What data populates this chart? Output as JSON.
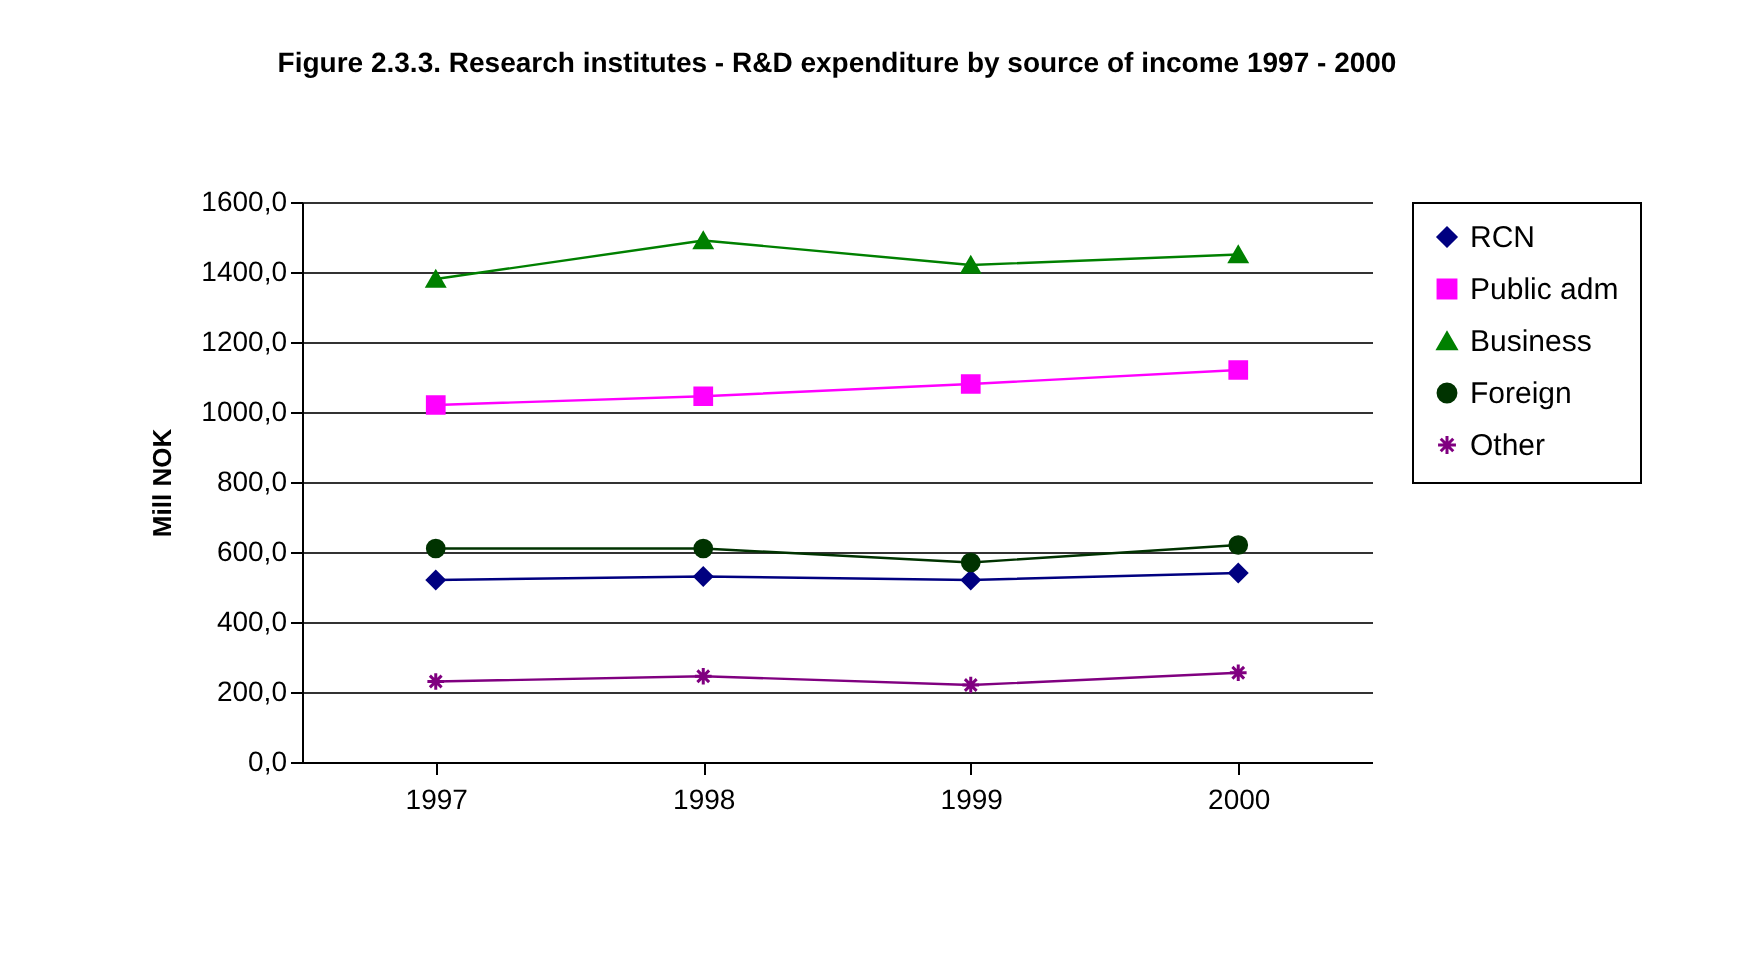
{
  "chart_data": {
    "type": "line",
    "title": "Figure 2.3.3. Research institutes - R&D expenditure by source of income 1997 - 2000",
    "ylabel": "Mill NOK",
    "categories": [
      "1997",
      "1998",
      "1999",
      "2000"
    ],
    "series": [
      {
        "name": "RCN",
        "color": "#000080",
        "marker": "diamond",
        "values": [
          520,
          530,
          520,
          540
        ]
      },
      {
        "name": "Public adm",
        "color": "#ff00ff",
        "marker": "square",
        "values": [
          1020,
          1045,
          1080,
          1120
        ]
      },
      {
        "name": "Business",
        "color": "#008000",
        "marker": "triangle",
        "values": [
          1380,
          1490,
          1420,
          1450
        ]
      },
      {
        "name": "Foreign",
        "color": "#003300",
        "marker": "circle",
        "values": [
          610,
          610,
          570,
          620
        ]
      },
      {
        "name": "Other",
        "color": "#800080",
        "marker": "cross",
        "values": [
          230,
          245,
          220,
          255
        ]
      }
    ],
    "ylim": [
      0,
      1600
    ],
    "yticks": [
      {
        "value": 0,
        "label": "0,0"
      },
      {
        "value": 200,
        "label": "200,0"
      },
      {
        "value": 400,
        "label": "400,0"
      },
      {
        "value": 600,
        "label": "600,0"
      },
      {
        "value": 800,
        "label": "800,0"
      },
      {
        "value": 1000,
        "label": "1000,0"
      },
      {
        "value": 1200,
        "label": "1200,0"
      },
      {
        "value": 1400,
        "label": "1400,0"
      },
      {
        "value": 1600,
        "label": "1600,0"
      }
    ],
    "grid": "y",
    "legend": "right",
    "line_style": "solid"
  }
}
